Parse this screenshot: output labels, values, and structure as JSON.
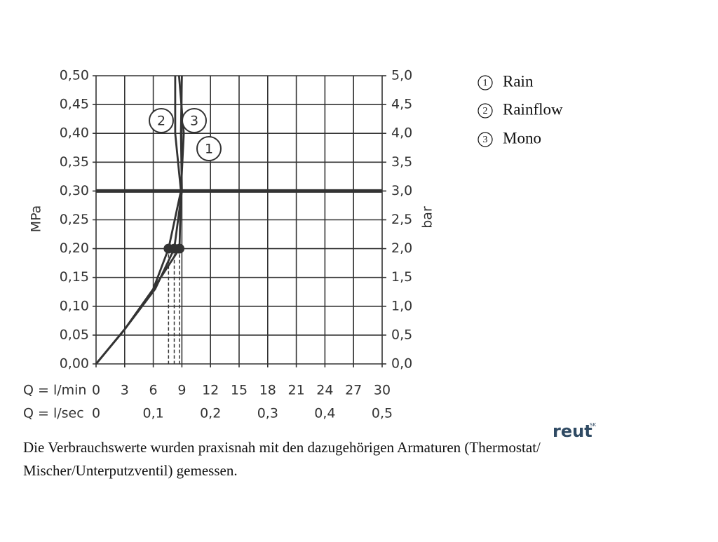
{
  "chart_data": {
    "type": "line",
    "y_label": "MPa",
    "y2_label": "bar",
    "x_label": "Q = l/min",
    "x2_label": "Q = l/sec",
    "xlim": [
      0,
      30
    ],
    "xticks": [
      0,
      3,
      6,
      9,
      12,
      15,
      18,
      21,
      24,
      27,
      30
    ],
    "x2lim": [
      0,
      0.5
    ],
    "x2ticks": [
      0,
      {
        "value": 0.1,
        "label": "0,1"
      },
      {
        "value": 0.2,
        "label": "0,2"
      },
      {
        "value": 0.3,
        "label": "0,3"
      },
      {
        "value": 0.4,
        "label": "0,4"
      },
      {
        "value": 0.5,
        "label": "0,5"
      }
    ],
    "ylim": [
      0,
      0.5
    ],
    "yticks": [
      {
        "value": 0,
        "label": "0,00"
      },
      {
        "value": 0.05,
        "label": "0,05"
      },
      {
        "value": 0.1,
        "label": "0,10"
      },
      {
        "value": 0.15,
        "label": "0,15"
      },
      {
        "value": 0.2,
        "label": "0,20"
      },
      {
        "value": 0.25,
        "label": "0,25"
      },
      {
        "value": 0.3,
        "label": "0,30"
      },
      {
        "value": 0.35,
        "label": "0,35"
      },
      {
        "value": 0.4,
        "label": "0,40"
      },
      {
        "value": 0.45,
        "label": "0,45"
      },
      {
        "value": 0.5,
        "label": "0,50"
      }
    ],
    "y2lim": [
      0,
      5
    ],
    "y2ticks": [
      {
        "value": 0,
        "label": "0,0"
      },
      {
        "value": 0.5,
        "label": "0,5"
      },
      {
        "value": 1,
        "label": "1,0"
      },
      {
        "value": 1.5,
        "label": "1,5"
      },
      {
        "value": 2,
        "label": "2,0"
      },
      {
        "value": 2.5,
        "label": "2,5"
      },
      {
        "value": 3,
        "label": "3,0"
      },
      {
        "value": 3.5,
        "label": "3,5"
      },
      {
        "value": 4,
        "label": "4,0"
      },
      {
        "value": 4.5,
        "label": "4,5"
      },
      {
        "value": 5,
        "label": "5,0"
      }
    ],
    "grid": true,
    "reference_line": 0.3,
    "marker_value": 0.2,
    "series": [
      {
        "name": "Rain",
        "label": "1",
        "color": "#333333",
        "x": [
          0,
          3,
          6,
          8.75,
          8.9,
          9.2,
          8.7
        ],
        "values": [
          0,
          0.06,
          0.13,
          0.2,
          0.3,
          0.4,
          0.5
        ]
      },
      {
        "name": "Rainflow",
        "label": "2",
        "color": "#333333",
        "x": [
          0,
          3,
          6,
          7.6,
          8.9,
          8.3,
          8.3
        ],
        "values": [
          0,
          0.06,
          0.13,
          0.2,
          0.3,
          0.4,
          0.5
        ]
      },
      {
        "name": "Mono",
        "label": "3",
        "color": "#333333",
        "x": [
          0,
          3,
          6.2,
          8.2,
          9.0,
          8.9,
          9.0
        ],
        "values": [
          0,
          0.06,
          0.13,
          0.2,
          0.3,
          0.4,
          0.5
        ]
      }
    ]
  },
  "note_lines": [
    "Die Verbrauchswerte wurden praxisnah mit den dazugehörigen Armaturen (Thermostat/",
    "Mischer/Unterputzventil) gemessen."
  ],
  "logo": "reut",
  "logo_sup": "SK"
}
